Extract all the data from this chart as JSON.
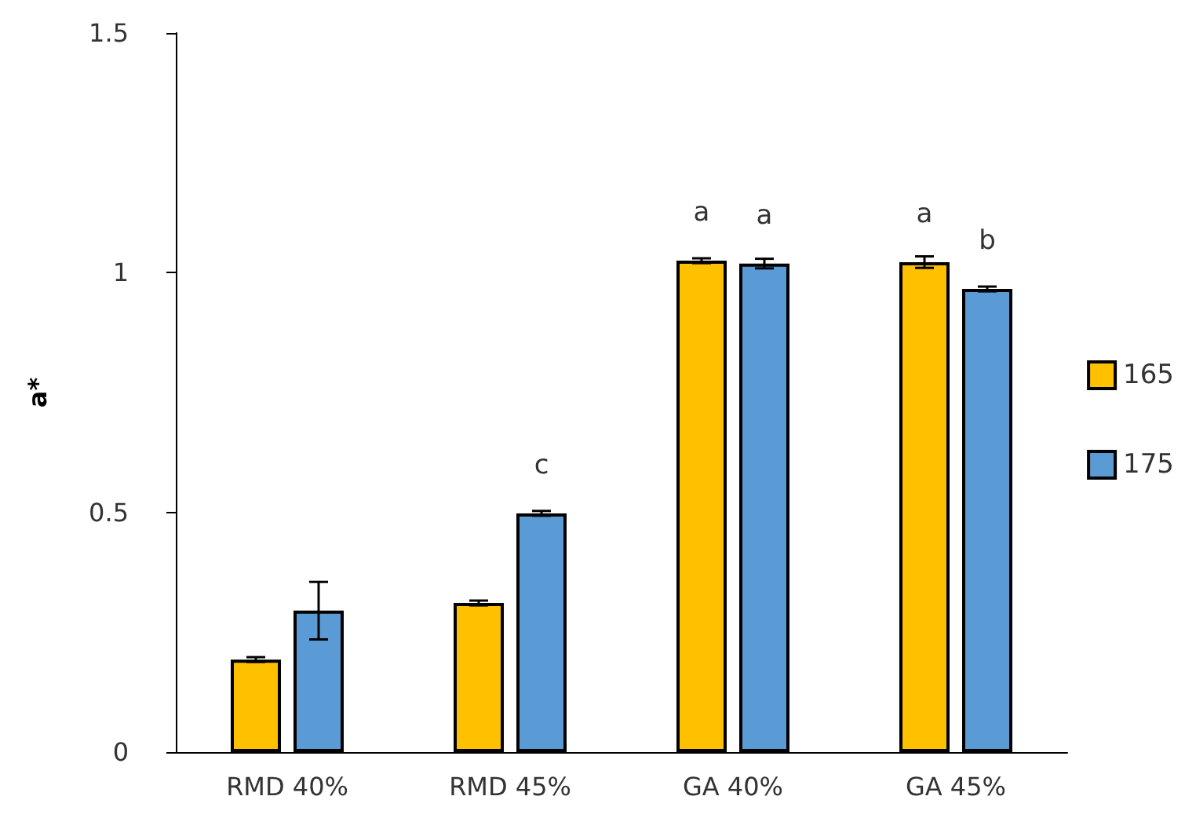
{
  "chart_data": {
    "type": "bar",
    "ylabel": "a*",
    "categories": [
      "RMD 40%",
      "RMD 45%",
      "GA 40%",
      "GA 45%"
    ],
    "series": [
      {
        "name": "165",
        "color": "#ffc000",
        "values": [
          0.193,
          0.311,
          1.025,
          1.022
        ],
        "errors": [
          0.005,
          0.005,
          0.005,
          0.012
        ],
        "value_labels": [
          null,
          null,
          "a",
          "a"
        ]
      },
      {
        "name": "175",
        "color": "#5b9bd5",
        "values": [
          0.295,
          0.498,
          1.019,
          0.966
        ],
        "errors": [
          0.06,
          0.005,
          0.01,
          0.005
        ],
        "value_labels": [
          null,
          "c",
          "a",
          "b"
        ]
      }
    ],
    "ylim": [
      0,
      1.5
    ],
    "yticks": [
      0,
      0.5,
      1,
      1.5
    ],
    "grid": false,
    "legend": "right"
  }
}
